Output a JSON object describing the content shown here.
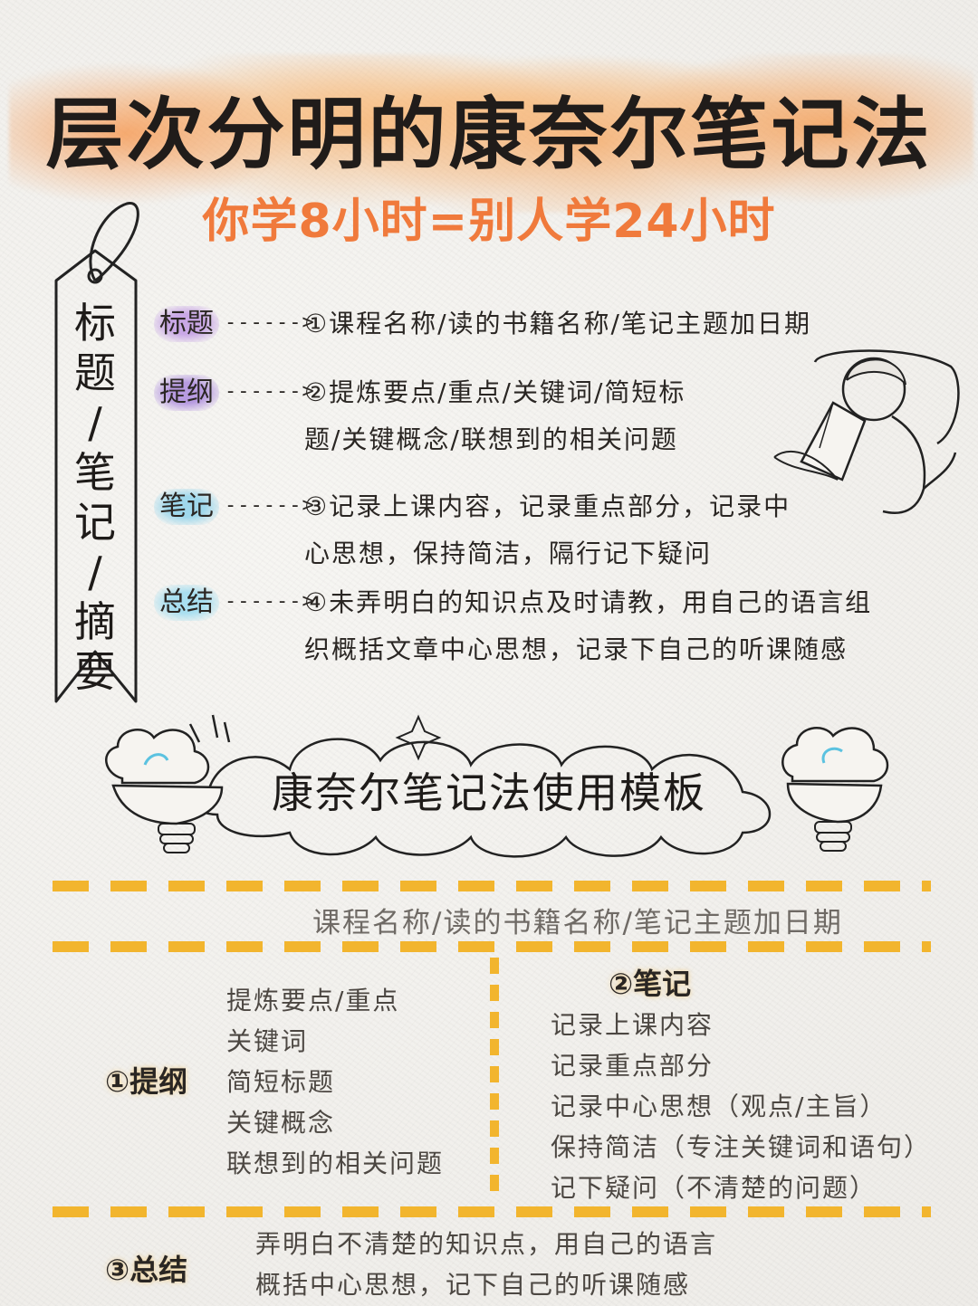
{
  "header": {
    "title": "层次分明的康奈尔笔记法",
    "subtitle": "你学8小时=别人学24小时"
  },
  "tag": {
    "chars": [
      "标",
      "题",
      "/",
      "笔",
      "记",
      "/",
      "摘",
      "要"
    ]
  },
  "rows": [
    {
      "label": "标题",
      "label_color": "#c9a8e6",
      "arrow": "------>",
      "lines": [
        "①课程名称/读的书籍名称/笔记主题加日期"
      ]
    },
    {
      "label": "提纲",
      "label_color": "#b79be0",
      "arrow": "------>",
      "lines": [
        "②提炼要点/重点/关键词/简短标",
        "题/关键概念/联想到的相关问题"
      ]
    },
    {
      "label": "笔记",
      "label_color": "#9fd8ec",
      "arrow": "------>",
      "lines": [
        "③记录上课内容，记录重点部分，记录中",
        "心思想，保持简洁，隔行记下疑问"
      ]
    },
    {
      "label": "总结",
      "label_color": "#a9dff0",
      "arrow": "------>",
      "lines": [
        "④未弄明白的知识点及时请教，用自己的语言组",
        "织概括文章中心思想，记录下自己的听课随感"
      ]
    }
  ],
  "banner": {
    "title": "康奈尔笔记法使用模板"
  },
  "template": {
    "heading": "课程名称/读的书籍名称/笔记主题加日期",
    "outline": {
      "label": "①提纲",
      "items": [
        "提炼要点/重点",
        "关键词",
        "简短标题",
        "关键概念",
        "联想到的相关问题"
      ]
    },
    "notes": {
      "label": "②笔记",
      "items": [
        "记录上课内容",
        "记录重点部分",
        "记录中心思想（观点/主旨）",
        "保持简洁（专注关键词和语句）",
        "记下疑问（不清楚的问题）"
      ]
    },
    "summary": {
      "label": "③总结",
      "items": [
        "弄明白不清楚的知识点，用自己的语言",
        "概括中心思想，记下自己的听课随感"
      ]
    }
  },
  "colors": {
    "accent_orange": "#f07a3c",
    "dash_yellow": "#f2b52e"
  }
}
